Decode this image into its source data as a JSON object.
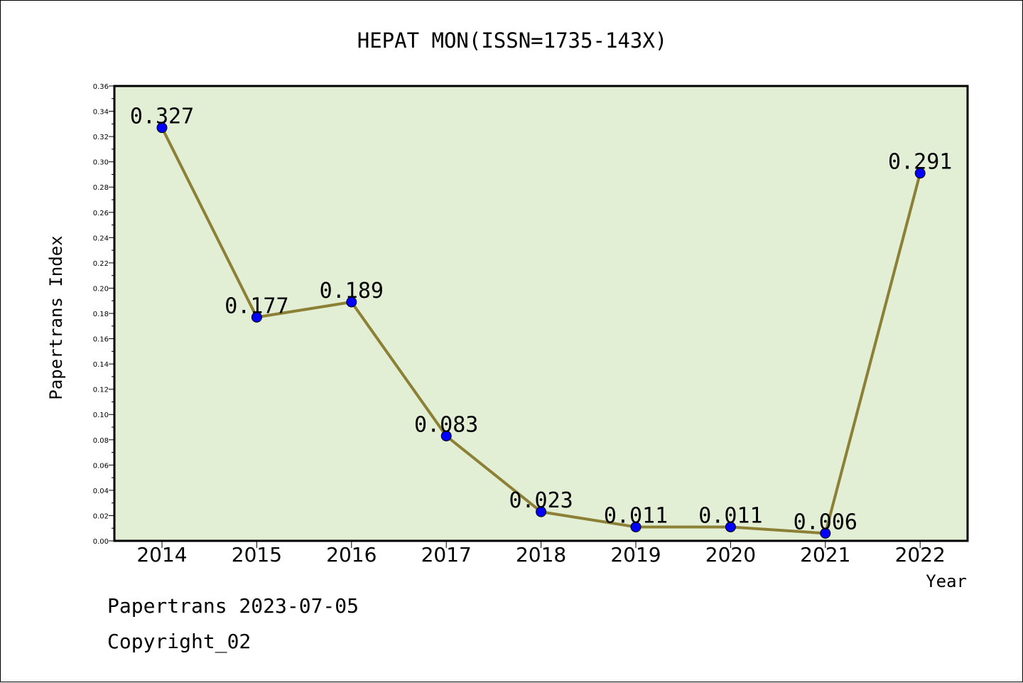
{
  "chart_data": {
    "type": "line",
    "title": "HEPAT MON(ISSN=1735-143X)",
    "xlabel": "Year",
    "ylabel": "Papertrans Index",
    "categories": [
      "2014",
      "2015",
      "2016",
      "2017",
      "2018",
      "2019",
      "2020",
      "2021",
      "2022"
    ],
    "series": [
      {
        "values": [
          0.327,
          0.177,
          0.189,
          0.083,
          0.023,
          0.011,
          0.011,
          0.006,
          0.291
        ],
        "labels": [
          "0.327",
          "0.177",
          "0.189",
          "0.083",
          "0.023",
          "0.011",
          "0.011",
          "0.006",
          "0.291"
        ]
      }
    ],
    "ylim": [
      0,
      0.36
    ],
    "yticks": [
      "0.00",
      "0.02",
      "0.04",
      "0.06",
      "0.08",
      "0.10",
      "0.12",
      "0.14",
      "0.16",
      "0.18",
      "0.20",
      "0.22",
      "0.24",
      "0.26",
      "0.28",
      "0.30",
      "0.32",
      "0.34",
      "0.36"
    ],
    "grid": false,
    "colors": {
      "plot_bg": "#e2efd4",
      "line": "#8b8035",
      "marker": "#0000ff"
    }
  },
  "footer": {
    "line1": "Papertrans 2023-07-05",
    "line2": "Copyright_02"
  }
}
